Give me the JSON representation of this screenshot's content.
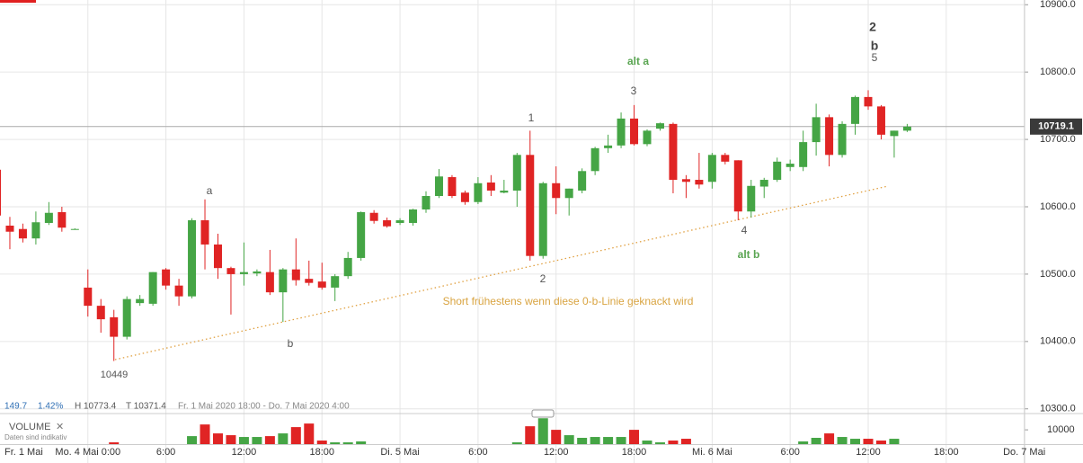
{
  "chart_data": {
    "type": "candlestick",
    "categories": [
      "Fr. 1 Mai",
      null,
      null,
      null,
      null,
      null,
      null,
      "Mo. 4 Mai 0:00",
      null,
      null,
      null,
      null,
      null,
      "6:00",
      null,
      null,
      null,
      null,
      null,
      "12:00",
      null,
      null,
      null,
      null,
      null,
      "18:00",
      null,
      null,
      null,
      null,
      null,
      "Di. 5 Mai",
      null,
      null,
      null,
      null,
      null,
      "6:00",
      null,
      null,
      null,
      null,
      null,
      "12:00",
      null,
      null,
      null,
      null,
      null,
      "18:00",
      null,
      null,
      null,
      null,
      null,
      "Mi. 6 Mai",
      null,
      null,
      null,
      null,
      null,
      "6:00",
      null,
      null,
      null,
      null,
      null,
      "12:00",
      null,
      null,
      null,
      null,
      null,
      "18:00",
      null,
      null,
      null,
      null,
      null,
      "Do. 7 Mai"
    ],
    "open": [
      10655,
      10572,
      10567,
      10553,
      10576,
      10592,
      10567,
      10480,
      10453,
      10436,
      10407,
      10457,
      10456,
      10507,
      10483,
      10467,
      10580,
      10544,
      10509,
      10500,
      10501,
      10503,
      10473,
      10507,
      10493,
      10489,
      10480,
      10497,
      10524,
      10591,
      10580,
      10576,
      10576,
      10596,
      10616,
      10644,
      10621,
      10607,
      10636,
      10621,
      10624,
      10677,
      10527,
      10635,
      10613,
      10624,
      10653,
      10687,
      10691,
      10731,
      10693,
      10716,
      10723,
      10641,
      10640,
      10637,
      10677,
      10669,
      10593,
      10630,
      10640,
      10659,
      10659,
      10696,
      10733,
      10677,
      10723,
      10763,
      10749,
      10705,
      10713,
      null,
      null,
      null,
      null,
      null,
      null,
      null,
      null,
      null
    ],
    "high": [
      10665,
      10585,
      10575,
      10593,
      10607,
      10600,
      10568,
      10507,
      10463,
      10447,
      10467,
      10469,
      10503,
      10509,
      10493,
      10583,
      10611,
      10560,
      10511,
      10547,
      10507,
      10536,
      10509,
      10553,
      10520,
      10517,
      10500,
      10533,
      10593,
      10595,
      10584,
      10583,
      10597,
      10623,
      10656,
      10647,
      10624,
      10644,
      10647,
      10640,
      10680,
      10713,
      10637,
      10660,
      10627,
      10657,
      10689,
      10707,
      10740,
      10751,
      10715,
      10725,
      10725,
      10647,
      10680,
      10680,
      10680,
      10669,
      10640,
      10643,
      10673,
      10670,
      10713,
      10753,
      10737,
      10727,
      10765,
      10773,
      10751,
      10713,
      10723,
      null,
      null,
      null,
      null,
      null,
      null,
      null,
      null,
      null
    ],
    "low": [
      10585,
      10537,
      10547,
      10544,
      10573,
      10563,
      10566,
      10437,
      10413,
      10371,
      10403,
      10453,
      10453,
      10477,
      10453,
      10464,
      10507,
      10493,
      10440,
      10483,
      10497,
      10469,
      10429,
      10483,
      10483,
      10477,
      10460,
      10493,
      10520,
      10575,
      10569,
      10573,
      10572,
      10591,
      10613,
      10613,
      10603,
      10604,
      10616,
      10620,
      10600,
      10520,
      10523,
      10589,
      10587,
      10620,
      10647,
      10680,
      10687,
      10691,
      10690,
      10713,
      10620,
      10613,
      10627,
      10627,
      10663,
      10580,
      10584,
      10613,
      10637,
      10653,
      10653,
      10676,
      10660,
      10673,
      10707,
      10744,
      10700,
      10673,
      10711,
      null,
      null,
      null,
      null,
      null,
      null,
      null,
      null,
      null
    ],
    "close": [
      10587,
      10563,
      10553,
      10577,
      10591,
      10569,
      10567,
      10453,
      10433,
      10407,
      10463,
      10463,
      10503,
      10483,
      10467,
      10580,
      10544,
      10509,
      10500,
      10503,
      10504,
      10473,
      10507,
      10491,
      10487,
      10480,
      10497,
      10524,
      10592,
      10579,
      10571,
      10580,
      10596,
      10616,
      10645,
      10616,
      10607,
      10635,
      10624,
      10624,
      10677,
      10527,
      10635,
      10613,
      10627,
      10653,
      10687,
      10691,
      10731,
      10693,
      10713,
      10724,
      10640,
      10637,
      10633,
      10677,
      10667,
      10593,
      10631,
      10640,
      10667,
      10664,
      10696,
      10733,
      10677,
      10723,
      10763,
      10749,
      10707,
      10713,
      10719,
      null,
      null,
      null,
      null,
      null,
      null,
      null,
      null,
      null
    ],
    "up_color": "#45a545",
    "down_color": "#e02424",
    "ylim": [
      10293,
      10907
    ],
    "yticks": [
      {
        "value": 10300,
        "label": "10300.0"
      },
      {
        "value": 10400,
        "label": "10400.0"
      },
      {
        "value": 10500,
        "label": "10500.0"
      },
      {
        "value": 10600,
        "label": "10600.0"
      },
      {
        "value": 10700,
        "label": "10700.0"
      },
      {
        "value": 10800,
        "label": "10800.0"
      },
      {
        "value": 10900,
        "label": "10900.0"
      }
    ],
    "grid": true,
    "last": 10719.1,
    "annotations": [
      "a",
      "b",
      "10449",
      "1",
      "2",
      "3",
      "alt a",
      "4",
      "alt b",
      "2",
      "b",
      "5",
      "Short frühestens wenn diese 0-b-Linie geknackt wird"
    ],
    "info": {
      "change": 149.7,
      "change_pct": {
        "value": 1.42,
        "label": "1.42%"
      },
      "high": "H 10773.4",
      "low": "T 10371.4",
      "range": "Fr. 1 Mai 2020 18:00 - Do. 7 Mai 2020 4:00"
    },
    "volume": {
      "title": "VOLUME",
      "close_icon": "✕",
      "note": "Daten sind indikativ",
      "values": [
        null,
        null,
        null,
        null,
        null,
        null,
        null,
        null,
        null,
        1250,
        null,
        null,
        null,
        null,
        null,
        5600,
        13750,
        7500,
        6250,
        5000,
        5000,
        5600,
        7500,
        11900,
        14400,
        2500,
        1250,
        1250,
        1900,
        null,
        null,
        null,
        null,
        null,
        null,
        null,
        null,
        null,
        null,
        null,
        1250,
        12500,
        18100,
        10000,
        6250,
        4400,
        5000,
        5000,
        5000,
        10000,
        2500,
        1250,
        2500,
        3750,
        null,
        null,
        null,
        null,
        null,
        null,
        null,
        null,
        1900,
        4400,
        7500,
        5000,
        3750,
        3750,
        2500,
        3750,
        null,
        null,
        null,
        null,
        null,
        null,
        null,
        null,
        null,
        null
      ],
      "ylim": [
        0,
        19500
      ],
      "yticks": [
        10000
      ]
    }
  }
}
